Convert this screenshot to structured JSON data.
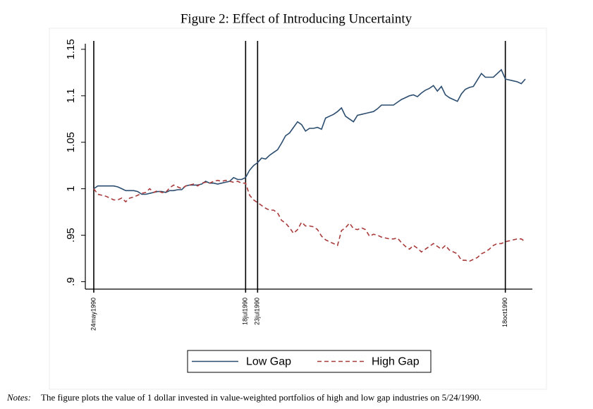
{
  "chart_data": {
    "type": "line",
    "title": "Figure 2: Effect of Introducing Uncertainty",
    "categories": [
      "24may1990",
      null,
      null,
      null,
      null,
      null,
      null,
      null,
      null,
      null,
      null,
      null,
      null,
      null,
      null,
      null,
      null,
      null,
      null,
      null,
      null,
      null,
      null,
      null,
      null,
      null,
      null,
      null,
      null,
      null,
      null,
      null,
      null,
      null,
      null,
      null,
      null,
      null,
      "18jul1990",
      null,
      null,
      "23jul1990",
      null,
      null,
      null,
      null,
      null,
      null,
      null,
      null,
      null,
      null,
      null,
      null,
      null,
      null,
      null,
      null,
      null,
      null,
      null,
      null,
      null,
      null,
      null,
      null,
      null,
      null,
      null,
      null,
      null,
      null,
      null,
      null,
      null,
      null,
      null,
      null,
      null,
      null,
      null,
      null,
      null,
      null,
      null,
      null,
      null,
      null,
      null,
      null,
      null,
      null,
      null,
      null,
      null,
      null,
      null,
      null,
      null,
      null,
      null,
      null,
      null,
      "18oct1990",
      null,
      null,
      null,
      null,
      null
    ],
    "series": [
      {
        "name": "Low Gap",
        "color": "#2b4d6f",
        "dash": false,
        "values": [
          1.0,
          1.003,
          1.003,
          1.003,
          1.003,
          1.003,
          1.002,
          1.0,
          0.998,
          0.998,
          0.998,
          0.997,
          0.994,
          0.994,
          0.995,
          0.996,
          0.997,
          0.997,
          0.996,
          0.998,
          0.998,
          0.999,
          0.999,
          1.003,
          1.004,
          1.004,
          1.004,
          1.005,
          1.008,
          1.006,
          1.006,
          1.005,
          1.006,
          1.007,
          1.008,
          1.012,
          1.01,
          1.01,
          1.012,
          1.02,
          1.025,
          1.028,
          1.033,
          1.032,
          1.036,
          1.039,
          1.042,
          1.049,
          1.057,
          1.06,
          1.066,
          1.072,
          1.069,
          1.062,
          1.065,
          1.065,
          1.066,
          1.064,
          1.076,
          1.078,
          1.08,
          1.083,
          1.087,
          1.078,
          1.075,
          1.072,
          1.079,
          1.08,
          1.081,
          1.082,
          1.083,
          1.086,
          1.09,
          1.09,
          1.09,
          1.09,
          1.093,
          1.096,
          1.098,
          1.1,
          1.101,
          1.099,
          1.103,
          1.106,
          1.108,
          1.111,
          1.105,
          1.11,
          1.101,
          1.098,
          1.096,
          1.094,
          1.102,
          1.107,
          1.109,
          1.11,
          1.117,
          1.124,
          1.12,
          1.12,
          1.12,
          1.124,
          1.128,
          1.118,
          1.117,
          1.116,
          1.115,
          1.113,
          1.118
        ]
      },
      {
        "name": "High Gap",
        "color": "#a83a3a",
        "dash": true,
        "values": [
          1.0,
          0.994,
          0.993,
          0.992,
          0.99,
          0.988,
          0.988,
          0.99,
          0.986,
          0.99,
          0.991,
          0.993,
          0.995,
          0.996,
          1.0,
          0.996,
          0.998,
          0.996,
          0.996,
          1.001,
          1.004,
          1.002,
          1.0,
          1.003,
          1.004,
          1.005,
          1.003,
          1.006,
          1.007,
          1.006,
          1.008,
          1.009,
          1.008,
          1.009,
          1.008,
          1.007,
          1.008,
          1.006,
          1.006,
          0.993,
          0.988,
          0.985,
          0.982,
          0.979,
          0.977,
          0.977,
          0.974,
          0.966,
          0.963,
          0.958,
          0.952,
          0.956,
          0.964,
          0.96,
          0.96,
          0.959,
          0.956,
          0.949,
          0.945,
          0.943,
          0.941,
          0.939,
          0.955,
          0.958,
          0.963,
          0.957,
          0.956,
          0.958,
          0.956,
          0.949,
          0.951,
          0.95,
          0.948,
          0.947,
          0.946,
          0.946,
          0.947,
          0.942,
          0.938,
          0.935,
          0.939,
          0.936,
          0.932,
          0.935,
          0.938,
          0.941,
          0.938,
          0.935,
          0.939,
          0.934,
          0.932,
          0.93,
          0.923,
          0.923,
          0.922,
          0.924,
          0.926,
          0.93,
          0.932,
          0.935,
          0.939,
          0.941,
          0.941,
          0.943,
          0.944,
          0.945,
          0.946,
          0.946,
          0.943
        ]
      }
    ],
    "ylim": [
      0.892,
      1.156
    ],
    "yticks": [
      {
        "value": 0.9,
        "label": ".9"
      },
      {
        "value": 0.95,
        "label": ".95"
      },
      1,
      1.05,
      1.1,
      1.15
    ],
    "vertical_lines_at_labels": true,
    "legend": "bottom",
    "note_label": "Notes:",
    "note": "The figure plots the value of 1 dollar invested in value-weighted portfolios of high and low gap industries on 5/24/1990."
  }
}
